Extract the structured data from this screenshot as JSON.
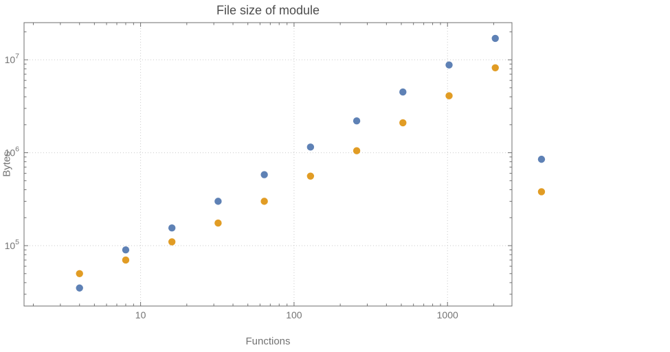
{
  "chart_data": {
    "type": "scatter",
    "title": "File size of module",
    "xlabel": "Functions",
    "ylabel": "Bytes",
    "x_scale": "log",
    "y_scale": "log",
    "xlim": [
      1.74,
      2630
    ],
    "ylim": [
      22400,
      25100000
    ],
    "x_major_ticks": [
      10,
      100,
      1000
    ],
    "y_major_ticks": [
      100000,
      1000000,
      10000000
    ],
    "grid": "dotted-at-major-ticks",
    "legend": "none",
    "x": [
      4,
      8,
      16,
      32,
      64,
      128,
      256,
      512,
      1024,
      2048,
      4096
    ],
    "series": [
      {
        "name": "series-1-blue",
        "color": "#5E81B5",
        "values": [
          35000,
          90000,
          155000,
          300000,
          580000,
          1150000,
          2200000,
          4500000,
          8800000,
          17000000,
          850000
        ]
      },
      {
        "name": "series-2-orange",
        "color": "#E19C24",
        "values": [
          50000,
          70000,
          110000,
          175000,
          300000,
          560000,
          1050000,
          2100000,
          4100000,
          8200000,
          380000
        ]
      }
    ],
    "marker_radius": 5.2,
    "colors": {
      "grid": "#c9c9c9",
      "frame": "#6e6e6e",
      "tick_label": "#737373",
      "title": "#4c4c4c",
      "background": "#ffffff"
    }
  }
}
